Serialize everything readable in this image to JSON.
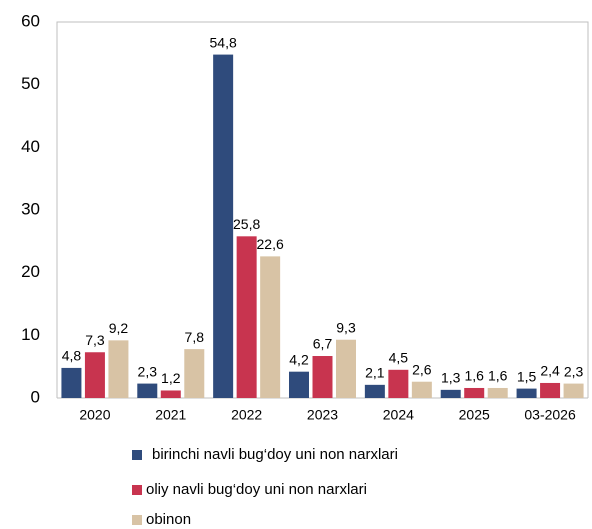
{
  "chart_data": {
    "type": "bar",
    "categories": [
      "2020",
      "2021",
      "2022",
      "2023",
      "2024",
      "2025",
      "03-2026"
    ],
    "series": [
      {
        "name": "birinchi navli bug‘doy uni non narxlari",
        "color": "#2f4b7c",
        "values": [
          4.8,
          2.3,
          54.8,
          4.2,
          2.1,
          1.3,
          1.5
        ],
        "value_labels": [
          "4,8",
          "2,3",
          "54,8",
          "4,2",
          "2,1",
          "1,3",
          "1,5"
        ]
      },
      {
        "name": "oliy navli bug‘doy uni non narxlari",
        "color": "#c8344f",
        "values": [
          7.3,
          1.2,
          25.8,
          6.7,
          4.5,
          1.6,
          2.4
        ],
        "value_labels": [
          "7,3",
          "1,2",
          "25,8",
          "6,7",
          "4,5",
          "1,6",
          "2,4"
        ]
      },
      {
        "name": "obinon",
        "color": "#d8c3a5",
        "values": [
          9.2,
          7.8,
          22.6,
          9.3,
          2.6,
          1.6,
          2.3
        ],
        "value_labels": [
          "9,2",
          "7,8",
          "22,6",
          "9,3",
          "2,6",
          "1,6",
          "2,3"
        ]
      }
    ],
    "ylim": [
      0,
      60
    ],
    "yticks": [
      0,
      10,
      20,
      30,
      40,
      50,
      60
    ],
    "grid": false,
    "legend": "bottom"
  }
}
